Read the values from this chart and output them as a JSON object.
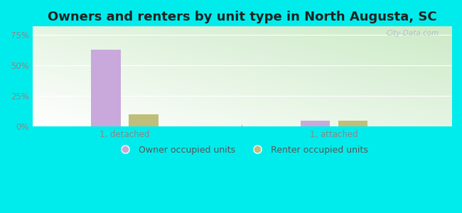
{
  "title": "Owners and renters by unit type in North Augusta, SC",
  "categories": [
    "1, detached",
    "1, attached"
  ],
  "owner_values": [
    63.0,
    4.5
  ],
  "renter_values": [
    10.0,
    4.5
  ],
  "owner_color": "#c9a8dc",
  "renter_color": "#bfbe7a",
  "bg_color": "#00ecec",
  "yticks": [
    0,
    25,
    50,
    75
  ],
  "ylim": [
    0,
    82
  ],
  "bar_width": 0.07,
  "group_centers": [
    0.22,
    0.72
  ],
  "bar_gap": 0.09,
  "legend_owner": "Owner occupied units",
  "legend_renter": "Renter occupied units",
  "watermark": "City-Data.com",
  "title_fontsize": 13,
  "tick_fontsize": 8.5,
  "legend_fontsize": 9
}
